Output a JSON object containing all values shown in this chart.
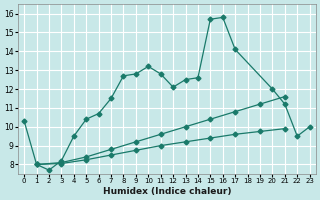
{
  "xlabel": "Humidex (Indice chaleur)",
  "bg_color": "#c8e8e8",
  "grid_color": "#ffffff",
  "line_color": "#1a7a6a",
  "xlim": [
    -0.5,
    23.5
  ],
  "ylim": [
    7.5,
    16.5
  ],
  "xticks": [
    0,
    1,
    2,
    3,
    4,
    5,
    6,
    7,
    8,
    9,
    10,
    11,
    12,
    13,
    14,
    15,
    16,
    17,
    18,
    19,
    20,
    21,
    22,
    23
  ],
  "yticks": [
    8,
    9,
    10,
    11,
    12,
    13,
    14,
    15,
    16
  ],
  "series1_x": [
    0,
    1,
    2,
    3,
    4,
    5,
    6,
    7,
    8,
    9,
    10,
    11,
    12,
    13,
    14,
    15,
    16,
    17,
    20,
    21,
    22,
    23
  ],
  "series1_y": [
    10.3,
    8.0,
    7.7,
    8.2,
    9.5,
    10.4,
    10.7,
    11.5,
    12.7,
    12.8,
    13.2,
    12.8,
    12.1,
    12.5,
    12.6,
    15.7,
    15.8,
    14.1,
    12.0,
    11.2,
    9.5,
    10.0
  ],
  "series2_x": [
    1,
    3,
    5,
    7,
    9,
    11,
    13,
    15,
    17,
    19,
    21
  ],
  "series2_y": [
    8.0,
    8.1,
    8.4,
    8.8,
    9.2,
    9.6,
    10.0,
    10.4,
    10.8,
    11.2,
    11.6
  ],
  "series3_x": [
    1,
    3,
    5,
    7,
    9,
    11,
    13,
    15,
    17,
    19,
    21
  ],
  "series3_y": [
    8.0,
    8.05,
    8.25,
    8.5,
    8.75,
    9.0,
    9.2,
    9.4,
    9.6,
    9.75,
    9.9
  ]
}
